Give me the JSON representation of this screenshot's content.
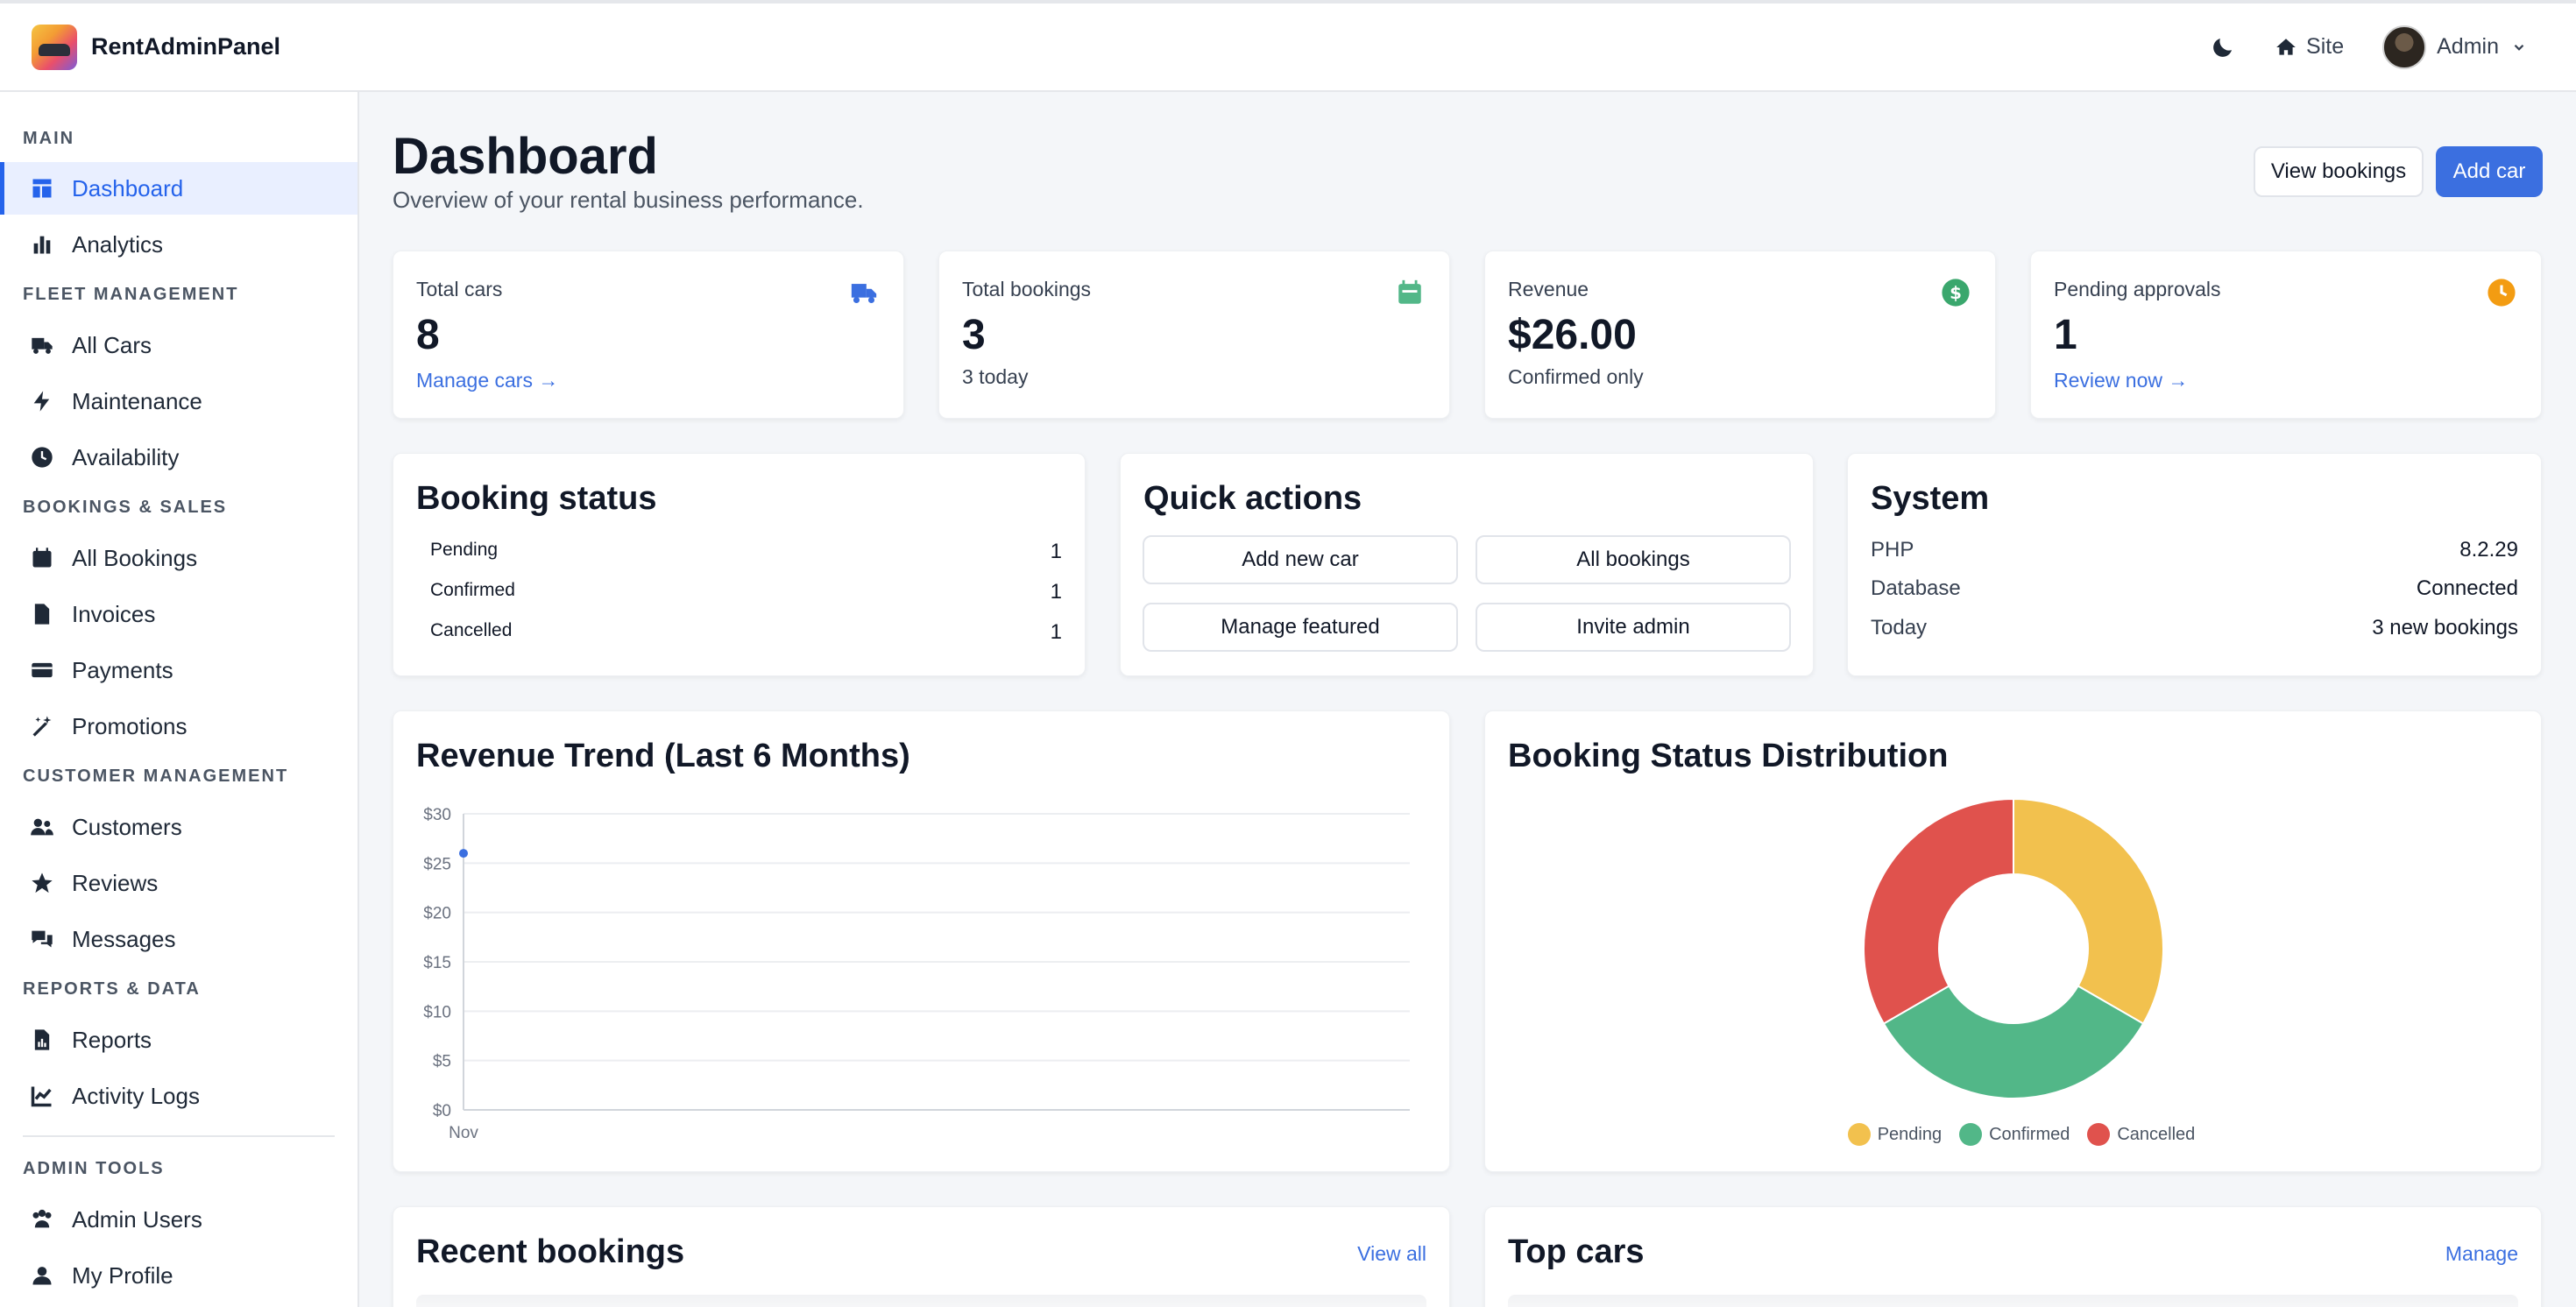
{
  "app": {
    "name": "RentAdminPanel"
  },
  "topbar": {
    "site_label": "Site",
    "admin_label": "Admin"
  },
  "sidebar": {
    "sections": {
      "main": "MAIN",
      "fleet": "FLEET MANAGEMENT",
      "bookings": "BOOKINGS & SALES",
      "customers": "CUSTOMER MANAGEMENT",
      "reports": "REPORTS & DATA",
      "admin": "ADMIN TOOLS"
    },
    "items": {
      "dashboard": "Dashboard",
      "analytics": "Analytics",
      "all_cars": "All Cars",
      "maintenance": "Maintenance",
      "availability": "Availability",
      "all_bookings": "All Bookings",
      "invoices": "Invoices",
      "payments": "Payments",
      "promotions": "Promotions",
      "customers": "Customers",
      "reviews": "Reviews",
      "messages": "Messages",
      "reports": "Reports",
      "activity_logs": "Activity Logs",
      "admin_users": "Admin Users",
      "my_profile": "My Profile"
    }
  },
  "page": {
    "title": "Dashboard",
    "subtitle": "Overview of your rental business performance.",
    "view_bookings_label": "View bookings",
    "add_car_label": "Add car"
  },
  "stats": {
    "total_cars": {
      "label": "Total cars",
      "value": "8",
      "link": "Manage cars →"
    },
    "total_bookings": {
      "label": "Total bookings",
      "value": "3",
      "note": "3 today"
    },
    "revenue": {
      "label": "Revenue",
      "value": "$26.00",
      "note": "Confirmed only"
    },
    "pending": {
      "label": "Pending approvals",
      "value": "1",
      "link": "Review now →"
    }
  },
  "booking_status": {
    "title": "Booking status",
    "rows": [
      {
        "label": "Pending",
        "value": "1"
      },
      {
        "label": "Confirmed",
        "value": "1"
      },
      {
        "label": "Cancelled",
        "value": "1"
      }
    ]
  },
  "quick_actions": {
    "title": "Quick actions",
    "add_new_car": "Add new car",
    "all_bookings": "All bookings",
    "manage_featured": "Manage featured",
    "invite_admin": "Invite admin"
  },
  "system": {
    "title": "System",
    "rows": [
      {
        "label": "PHP",
        "value": "8.2.29"
      },
      {
        "label": "Database",
        "value": "Connected"
      },
      {
        "label": "Today",
        "value": "3 new bookings"
      }
    ]
  },
  "colors": {
    "accent": "#3b6fe0",
    "pending": "#f2c14e",
    "confirmed": "#52b788",
    "cancelled": "#e0524d"
  },
  "chart_data": [
    {
      "type": "line",
      "title": "Revenue Trend (Last 6 Months)",
      "categories": [
        "Nov"
      ],
      "x": [
        "Nov"
      ],
      "series": [
        {
          "values": [
            26
          ]
        }
      ],
      "yticks": [
        "$0",
        "$5",
        "$10",
        "$15",
        "$20",
        "$25",
        "$30"
      ],
      "ylim": [
        0,
        30
      ],
      "grid": true
    },
    {
      "type": "pie",
      "title": "Booking Status Distribution",
      "categories": [
        "Pending",
        "Confirmed",
        "Cancelled"
      ],
      "values": [
        1,
        1,
        1
      ],
      "donut": true,
      "legend": "bottom"
    }
  ],
  "recent_bookings": {
    "title": "Recent bookings",
    "link": "View all"
  },
  "top_cars": {
    "title": "Top cars",
    "link": "Manage"
  }
}
